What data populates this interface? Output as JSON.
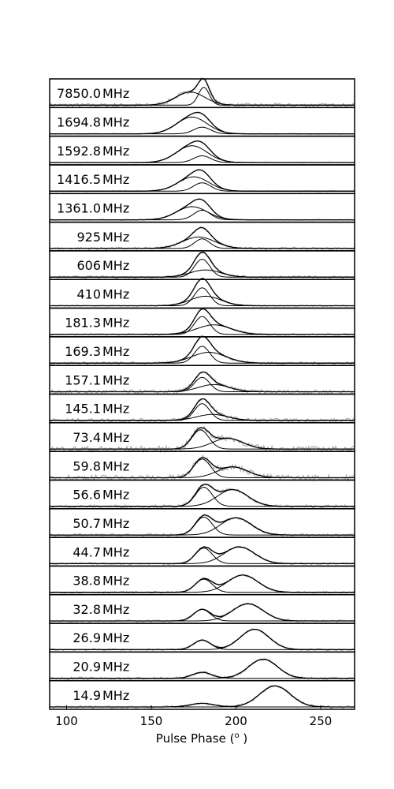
{
  "chart_data": {
    "type": "line",
    "xlabel": "Pulse Phase (°)",
    "xlabel_main": "Pulse Phase (",
    "xlabel_sup": "o",
    "xlabel_end": " )",
    "xlim": [
      90,
      270
    ],
    "xticks": [
      100,
      150,
      200,
      250
    ],
    "grid": false,
    "legend": "none",
    "panels": [
      {
        "freq": "7850.0",
        "unit": "MHz",
        "c1": {
          "amp": 0.55,
          "mu": 173,
          "sigma": 8.5
        },
        "c2": {
          "amp": 0.75,
          "mu": 181,
          "sigma": 3.2
        },
        "noise": 0.08
      },
      {
        "freq": "1694.8",
        "unit": "MHz",
        "c1": {
          "amp": 0.7,
          "mu": 174,
          "sigma": 9.0
        },
        "c2": {
          "amp": 0.28,
          "mu": 180,
          "sigma": 5.0
        },
        "noise": 0.02
      },
      {
        "freq": "1592.8",
        "unit": "MHz",
        "c1": {
          "amp": 0.7,
          "mu": 174,
          "sigma": 9.0
        },
        "c2": {
          "amp": 0.28,
          "mu": 180,
          "sigma": 5.0
        },
        "noise": 0.02
      },
      {
        "freq": "1416.5",
        "unit": "MHz",
        "c1": {
          "amp": 0.6,
          "mu": 175,
          "sigma": 9.0
        },
        "c2": {
          "amp": 0.35,
          "mu": 180,
          "sigma": 5.0
        },
        "noise": 0.02
      },
      {
        "freq": "1361.0",
        "unit": "MHz",
        "c1": {
          "amp": 0.55,
          "mu": 174,
          "sigma": 9.0
        },
        "c2": {
          "amp": 0.4,
          "mu": 180,
          "sigma": 5.0
        },
        "noise": 0.02
      },
      {
        "freq": "925",
        "unit": "MHz",
        "c1": {
          "amp": 0.48,
          "mu": 178,
          "sigma": 9.5
        },
        "c2": {
          "amp": 0.4,
          "mu": 180,
          "sigma": 4.5
        },
        "noise": 0.05
      },
      {
        "freq": "606",
        "unit": "MHz",
        "c1": {
          "amp": 0.75,
          "mu": 180,
          "sigma": 4.5
        },
        "c2": {
          "amp": 0.3,
          "mu": 182,
          "sigma": 9.0
        },
        "noise": 0.05
      },
      {
        "freq": "410",
        "unit": "MHz",
        "c1": {
          "amp": 0.75,
          "mu": 180,
          "sigma": 4.5
        },
        "c2": {
          "amp": 0.4,
          "mu": 182,
          "sigma": 9.0
        },
        "noise": 0.03
      },
      {
        "freq": "181.3",
        "unit": "MHz",
        "c1": {
          "amp": 0.75,
          "mu": 180,
          "sigma": 4.5
        },
        "c2": {
          "amp": 0.4,
          "mu": 187,
          "sigma": 10.0
        },
        "noise": 0.04
      },
      {
        "freq": "169.3",
        "unit": "MHz",
        "c1": {
          "amp": 0.7,
          "mu": 180,
          "sigma": 4.5
        },
        "c2": {
          "amp": 0.45,
          "mu": 184,
          "sigma": 10.0
        },
        "noise": 0.05
      },
      {
        "freq": "157.1",
        "unit": "MHz",
        "c1": {
          "amp": 0.6,
          "mu": 180,
          "sigma": 4.5
        },
        "c2": {
          "amp": 0.3,
          "mu": 187,
          "sigma": 9.0
        },
        "noise": 0.08
      },
      {
        "freq": "145.1",
        "unit": "MHz",
        "c1": {
          "amp": 0.7,
          "mu": 180,
          "sigma": 4.5
        },
        "c2": {
          "amp": 0.25,
          "mu": 186,
          "sigma": 9.0
        },
        "noise": 0.08
      },
      {
        "freq": "73.4",
        "unit": "MHz",
        "c1": {
          "amp": 0.8,
          "mu": 179,
          "sigma": 5.0
        },
        "c2": {
          "amp": 0.45,
          "mu": 195,
          "sigma": 9.0
        },
        "noise": 0.12
      },
      {
        "freq": "59.8",
        "unit": "MHz",
        "c1": {
          "amp": 0.78,
          "mu": 180,
          "sigma": 5.0
        },
        "c2": {
          "amp": 0.45,
          "mu": 198,
          "sigma": 9.0
        },
        "noise": 0.12
      },
      {
        "freq": "56.6",
        "unit": "MHz",
        "c1": {
          "amp": 0.8,
          "mu": 181,
          "sigma": 5.0
        },
        "c2": {
          "amp": 0.7,
          "mu": 198,
          "sigma": 9.0
        },
        "noise": 0.06
      },
      {
        "freq": "50.7",
        "unit": "MHz",
        "c1": {
          "amp": 0.75,
          "mu": 181,
          "sigma": 5.0
        },
        "c2": {
          "amp": 0.72,
          "mu": 200,
          "sigma": 9.0
        },
        "noise": 0.05
      },
      {
        "freq": "44.7",
        "unit": "MHz",
        "c1": {
          "amp": 0.65,
          "mu": 181,
          "sigma": 5.0
        },
        "c2": {
          "amp": 0.7,
          "mu": 202,
          "sigma": 9.0
        },
        "noise": 0.04
      },
      {
        "freq": "38.8",
        "unit": "MHz",
        "c1": {
          "amp": 0.55,
          "mu": 181,
          "sigma": 5.0
        },
        "c2": {
          "amp": 0.72,
          "mu": 204,
          "sigma": 9.0
        },
        "noise": 0.04
      },
      {
        "freq": "32.8",
        "unit": "MHz",
        "c1": {
          "amp": 0.48,
          "mu": 180,
          "sigma": 5.0
        },
        "c2": {
          "amp": 0.72,
          "mu": 207,
          "sigma": 9.0
        },
        "noise": 0.04
      },
      {
        "freq": "26.9",
        "unit": "MHz",
        "c1": {
          "amp": 0.4,
          "mu": 180,
          "sigma": 5.0
        },
        "c2": {
          "amp": 0.85,
          "mu": 211,
          "sigma": 8.5
        },
        "noise": 0.04
      },
      {
        "freq": "20.9",
        "unit": "MHz",
        "c1": {
          "amp": 0.25,
          "mu": 180,
          "sigma": 5.5
        },
        "c2": {
          "amp": 0.8,
          "mu": 216,
          "sigma": 8.5
        },
        "noise": 0.05
      },
      {
        "freq": "14.9",
        "unit": "MHz",
        "c1": {
          "amp": 0.15,
          "mu": 180,
          "sigma": 7.0
        },
        "c2": {
          "amp": 0.88,
          "mu": 223,
          "sigma": 9.0
        },
        "noise": 0.05
      }
    ]
  }
}
